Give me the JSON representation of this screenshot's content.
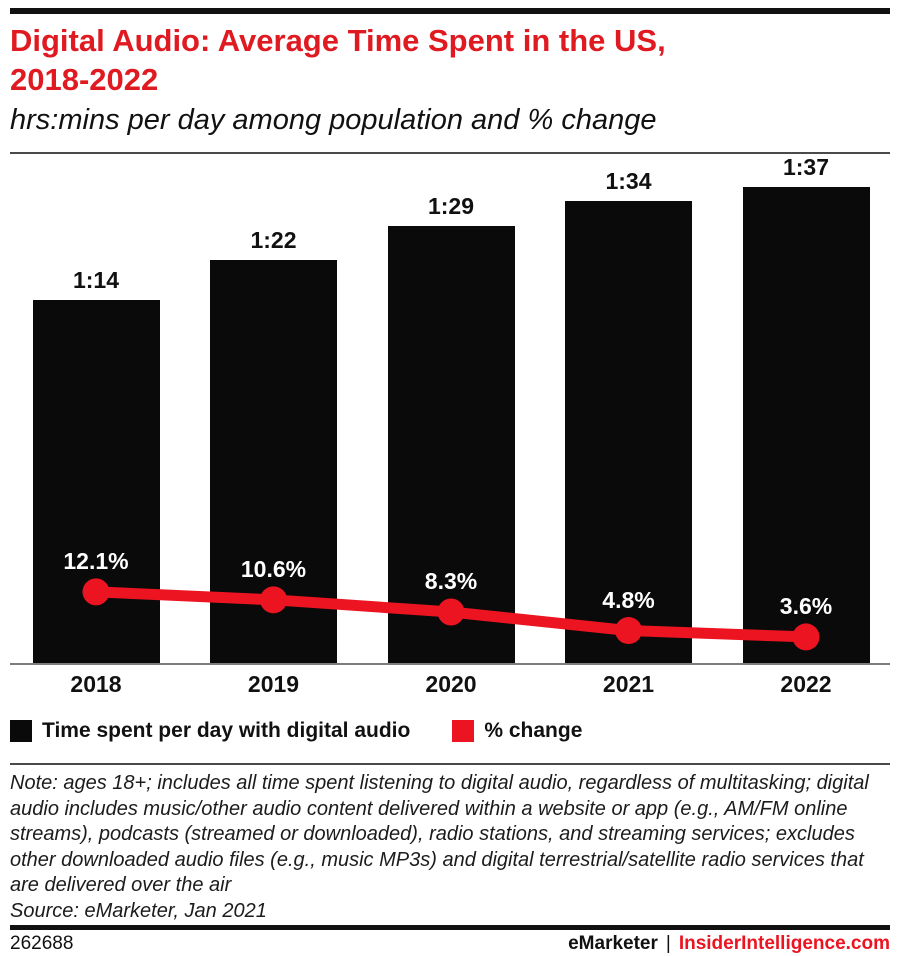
{
  "colors": {
    "title_red": "#e01a21",
    "series_red": "#ec1420",
    "bar_black": "#0a0a0a"
  },
  "header": {
    "title_line1": "Digital Audio: Average Time Spent in the US,",
    "title_line2": "2018-2022",
    "subtitle": "hrs:mins per day among population and % change"
  },
  "chart_data": {
    "type": "bar",
    "categories": [
      "2018",
      "2019",
      "2020",
      "2021",
      "2022"
    ],
    "series": [
      {
        "name": "Time spent per day with digital audio",
        "type": "bar",
        "unit": "hrs:mins per day",
        "labels": [
          "1:14",
          "1:22",
          "1:29",
          "1:34",
          "1:37"
        ],
        "values_minutes": [
          74,
          82,
          89,
          94,
          97
        ]
      },
      {
        "name": "% change",
        "type": "line",
        "unit": "%",
        "labels": [
          "12.1%",
          "10.6%",
          "8.3%",
          "4.8%",
          "3.6%"
        ],
        "values": [
          12.1,
          10.6,
          8.3,
          4.8,
          3.6
        ]
      }
    ],
    "title": "Digital Audio: Average Time Spent in the US, 2018-2022",
    "xlabel": "",
    "ylabel": "",
    "ylim_minutes": [
      0,
      102.5
    ],
    "grid": false,
    "legend_position": "bottom"
  },
  "legend": {
    "items": [
      {
        "label": "Time spent per day with digital audio",
        "color": "#0a0a0a"
      },
      {
        "label": "% change",
        "color": "#ec1420"
      }
    ]
  },
  "note": {
    "text": "Note: ages 18+; includes all time spent listening to digital audio, regardless of multitasking; digital audio includes music/other audio content delivered within a website or app (e.g., AM/FM online streams), podcasts (streamed or downloaded), radio stations, and streaming services; excludes other downloaded audio files (e.g., music MP3s) and digital terrestrial/satellite radio services that are delivered over the air",
    "source": "Source: eMarketer, Jan 2021"
  },
  "footer": {
    "chart_id": "262688",
    "brand": "eMarketer",
    "separator": "|",
    "site": "InsiderIntelligence.com"
  }
}
